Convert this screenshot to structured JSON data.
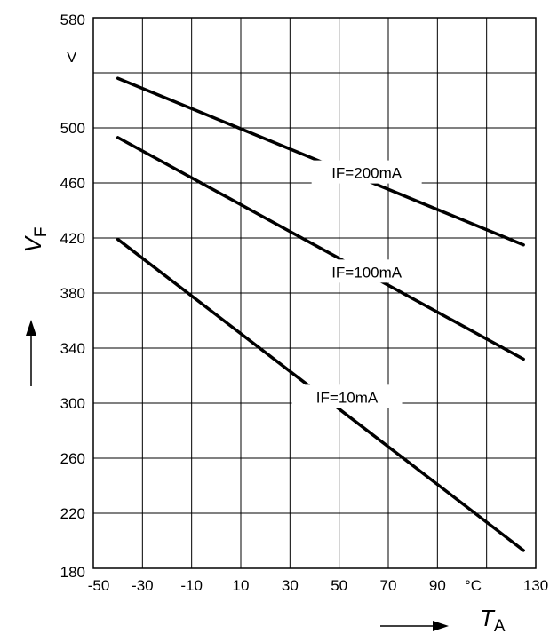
{
  "chart_data": {
    "type": "line",
    "xlabel": {
      "main": "T",
      "sub": "A"
    },
    "ylabel": {
      "main": "V",
      "sub": "F"
    },
    "x_unit": "°C",
    "y_unit": "V",
    "xlim": [
      -50,
      130
    ],
    "ylim": [
      180,
      580
    ],
    "x_ticks": [
      "-50",
      "-30",
      "-10",
      "10",
      "30",
      "50",
      "70",
      "90",
      "130"
    ],
    "y_ticks": [
      "180",
      "220",
      "260",
      "300",
      "340",
      "380",
      "420",
      "460",
      "500",
      "580"
    ],
    "grid": true,
    "series": [
      {
        "name": "IF=200mA",
        "x": [
          -40,
          125
        ],
        "y": [
          536,
          415
        ]
      },
      {
        "name": "IF=100mA",
        "x": [
          -40,
          125
        ],
        "y": [
          493,
          332
        ]
      },
      {
        "name": "IF=10mA",
        "x": [
          -40,
          125
        ],
        "y": [
          419,
          193
        ]
      }
    ]
  }
}
